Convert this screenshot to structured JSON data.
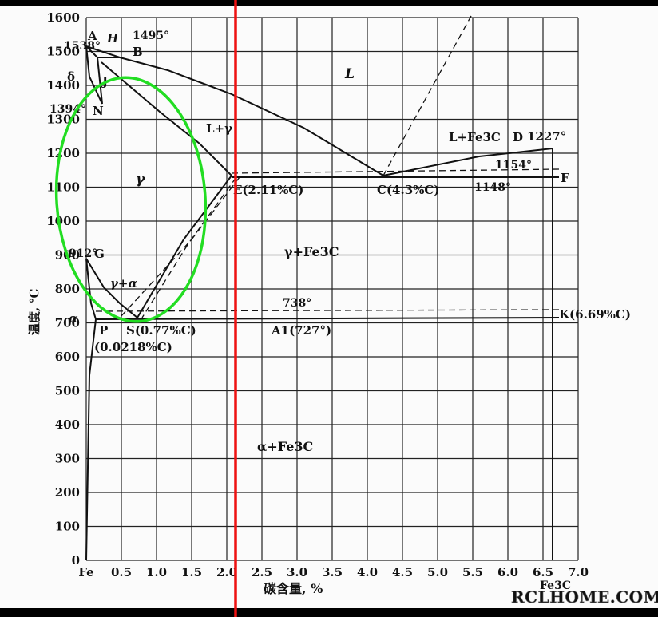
{
  "diagram": {
    "y_axis": {
      "label": "温度, ℃",
      "ticks": [
        "1600",
        "1500",
        "1400",
        "1300",
        "1200",
        "1100",
        "1000",
        "900",
        "800",
        "700",
        "600",
        "500",
        "400",
        "300",
        "200",
        "100",
        "0"
      ]
    },
    "x_axis": {
      "label": "碳含量, %",
      "ticks": [
        "Fe",
        "0.5",
        "1.0",
        "1.5",
        "2.0",
        "2.5",
        "3.0",
        "3.5",
        "4.0",
        "4.5",
        "5.0",
        "5.5",
        "6.0",
        "6.5",
        "7.0"
      ],
      "end_label": "Fe3C"
    },
    "temperatures": {
      "t1538": "1538°",
      "t1495": "1495°",
      "t1394": "1394°",
      "t912": "912°",
      "t1227": "1227°",
      "t1154": "1154°",
      "t1148": "1148°",
      "t738": "738°",
      "A1": "A1(727°)"
    },
    "points": {
      "A": "A",
      "H": "H",
      "B": "B",
      "J": "J",
      "N": "N",
      "G": "G",
      "D": "D",
      "F": "F",
      "delta": "δ",
      "alpha": "α",
      "E": "E(2.11%C)",
      "C": "C(4.3%C)",
      "K": "K(6.69%C)",
      "P": "P",
      "S": "S(0.77%C)",
      "P_comp": "(0.0218%C)"
    },
    "regions": {
      "liquid": "L",
      "liquid_gamma": "L+γ",
      "liquid_fe3c": "L+Fe3C",
      "gamma": "γ",
      "gamma_fe3c": "γ+Fe3C",
      "gamma_alpha": "γ+α",
      "alpha_fe3c": "α+Fe3C"
    },
    "annotations": {
      "highlight_ellipse_color": "#22dd22",
      "vertical_marker_color": "#ee1111"
    }
  },
  "watermark": "RCLHOME.COM"
}
